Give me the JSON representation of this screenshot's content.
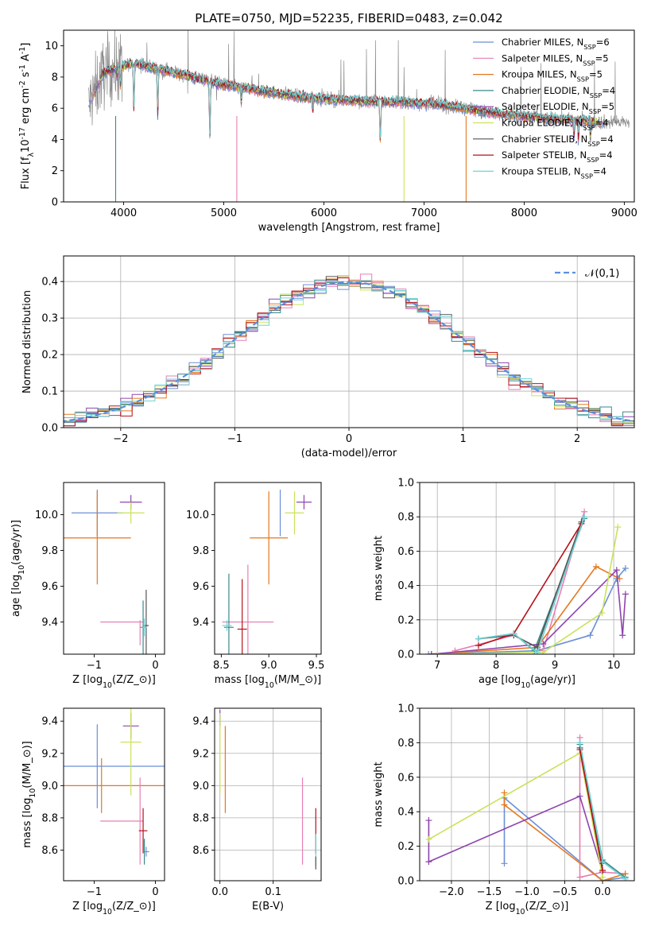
{
  "colors": {
    "palette": [
      "#6b8fd6",
      "#e77fb3",
      "#e5781f",
      "#3a8a8a",
      "#8e44ad",
      "#c9e35a",
      "#555555",
      "#b5121b",
      "#6fd3d6",
      "#8a8a8a"
    ],
    "normal_curve": "#5b8fde"
  },
  "chart_data": [
    {
      "id": "spectrum",
      "type": "line",
      "title": "PLATE=0750, MJD=52235, FIBERID=0483, z=0.042",
      "xlabel": "wavelength [Angstrom, rest frame]",
      "ylabel": "Flux [f$_{\\lambda}$10$^{-17}$ erg cm$^{-2}$ s$^{-1}$ A$^{-1}$]",
      "xlim": [
        3400,
        9100
      ],
      "ylim": [
        0,
        11
      ],
      "xticks": [
        4000,
        5000,
        6000,
        7000,
        8000,
        9000
      ],
      "yticks": [
        0,
        2,
        4,
        6,
        8,
        10
      ],
      "grid": false,
      "legend_position": "top-right",
      "series": [
        {
          "name": "Chabrier MILES, N$_{SSP}$=6"
        },
        {
          "name": "Salpeter MILES, N$_{SSP}$=5"
        },
        {
          "name": "Kroupa MILES, N$_{SSP}$=5"
        },
        {
          "name": "Chabrier ELODIE, N$_{SSP}$=4"
        },
        {
          "name": "Salpeter ELODIE, N$_{SSP}$=5"
        },
        {
          "name": "Kroupa ELODIE, N$_{SSP}$=4"
        },
        {
          "name": "Chabrier STELIB, N$_{SSP}$=4"
        },
        {
          "name": "Salpeter STELIB, N$_{SSP}$=4"
        },
        {
          "name": "Kroupa STELIB, N$_{SSP}$=4"
        }
      ],
      "data_spectrum": {
        "x_range": [
          3650,
          9050
        ]
      },
      "model_continuum": {
        "x": [
          3650,
          3800,
          3950,
          4100,
          4300,
          4500,
          4800,
          5000,
          5200,
          5500,
          5800,
          6000,
          6300,
          6600,
          6800,
          7000,
          7200,
          7400,
          7600,
          7800,
          8000,
          8300,
          8600,
          8800
        ],
        "y": [
          6.2,
          8.3,
          8.6,
          8.9,
          8.6,
          8.3,
          7.8,
          7.5,
          7.3,
          7.0,
          6.7,
          6.6,
          6.5,
          6.4,
          6.4,
          6.3,
          6.2,
          6.0,
          5.8,
          5.6,
          5.5,
          5.3,
          5.2,
          5.1
        ]
      }
    },
    {
      "id": "residuals",
      "type": "histogram",
      "xlabel": "(data-model)/error",
      "ylabel": "Normed distribution",
      "xlim": [
        -2.5,
        2.5
      ],
      "ylim": [
        0,
        0.47
      ],
      "xticks": [
        -2,
        -1,
        0,
        1,
        2
      ],
      "yticks": [
        0.0,
        0.1,
        0.2,
        0.3,
        0.4
      ],
      "grid": true,
      "legend_position": "top-right",
      "legend": "$\\mathcal{N}(0,1)$",
      "bin_width": 0.1,
      "normal_pdf": {
        "mean": 0,
        "sigma": 1
      }
    },
    {
      "id": "age_vs_Z",
      "type": "errorbar",
      "xlabel": "Z [log$_{10}$(Z/Z$_\\odot$)]",
      "ylabel": "age  [log$_{10}$(age/yr)]",
      "xlim": [
        -1.5,
        0.15
      ],
      "ylim": [
        9.22,
        10.18
      ],
      "xticks": [
        -1,
        0
      ],
      "yticks": [
        9.4,
        9.6,
        9.8,
        10.0
      ],
      "points": [
        {
          "x": -0.95,
          "y": 10.01,
          "xerr": 0.42,
          "yerr": 0.13,
          "c": 0
        },
        {
          "x": -0.95,
          "y": 9.87,
          "xerr": 0.55,
          "yerr": 0.26,
          "c": 2
        },
        {
          "x": -0.55,
          "y": 9.4,
          "xerr": 0.35,
          "yerr": 0.0,
          "c": 1
        },
        {
          "x": -0.4,
          "y": 10.07,
          "xerr": 0.18,
          "yerr": 0.04,
          "c": 4
        },
        {
          "x": -0.4,
          "y": 10.01,
          "xerr": 0.22,
          "yerr": 0.06,
          "c": 5
        },
        {
          "x": -0.2,
          "y": 9.37,
          "xerr": 0.05,
          "yerr": 0.15,
          "c": 3
        },
        {
          "x": -0.15,
          "y": 9.38,
          "xerr": 0.04,
          "yerr": 0.2,
          "c": 6
        },
        {
          "x": -0.25,
          "y": 9.34,
          "xerr": 0.0,
          "yerr": 0.07,
          "c": 1
        },
        {
          "x": -0.18,
          "y": 9.37,
          "xerr": 0.04,
          "yerr": 0.05,
          "c": 8
        }
      ]
    },
    {
      "id": "age_vs_mass",
      "type": "errorbar",
      "xlabel": "mass [log$_{10}$(M/M$_\\odot$)]",
      "ylabel": "",
      "xlim": [
        8.43,
        9.55
      ],
      "ylim": [
        9.22,
        10.18
      ],
      "xticks": [
        8.5,
        9.0,
        9.5
      ],
      "yticks": [
        9.4,
        9.6,
        9.8,
        10.0
      ],
      "points": [
        {
          "x": 9.12,
          "y": 10.01,
          "xerr": 0.0,
          "yerr": 0.13,
          "c": 0
        },
        {
          "x": 9.0,
          "y": 9.87,
          "xerr": 0.2,
          "yerr": 0.26,
          "c": 2
        },
        {
          "x": 8.78,
          "y": 9.4,
          "xerr": 0.27,
          "yerr": 0.32,
          "c": 1
        },
        {
          "x": 9.37,
          "y": 10.07,
          "xerr": 0.08,
          "yerr": 0.04,
          "c": 4
        },
        {
          "x": 9.27,
          "y": 10.01,
          "xerr": 0.1,
          "yerr": 0.12,
          "c": 5
        },
        {
          "x": 8.58,
          "y": 9.37,
          "xerr": 0.05,
          "yerr": 0.3,
          "c": 3
        },
        {
          "x": 8.72,
          "y": 9.36,
          "xerr": 0.05,
          "yerr": 0.28,
          "c": 7
        },
        {
          "x": 8.56,
          "y": 9.38,
          "xerr": 0.05,
          "yerr": 0.03,
          "c": 8
        }
      ]
    },
    {
      "id": "weight_vs_age",
      "type": "line",
      "xlabel": "age  [log$_{10}$(age/yr)]",
      "ylabel": "mass weight",
      "xlim": [
        6.7,
        10.35
      ],
      "ylim": [
        0,
        1.0
      ],
      "xticks": [
        7,
        8,
        9,
        10
      ],
      "yticks": [
        0.0,
        0.2,
        0.4,
        0.6,
        0.8,
        1.0
      ],
      "grid": true,
      "series": [
        {
          "c": 0,
          "x": [
            6.85,
            8.7,
            9.6,
            10.05,
            10.2
          ],
          "y": [
            0.0,
            0.02,
            0.11,
            0.44,
            0.5
          ]
        },
        {
          "c": 1,
          "x": [
            7.3,
            8.3,
            8.8,
            9.5
          ],
          "y": [
            0.02,
            0.11,
            0.02,
            0.83
          ]
        },
        {
          "c": 2,
          "x": [
            6.9,
            8.7,
            9.7,
            10.1
          ],
          "y": [
            0.0,
            0.04,
            0.51,
            0.44
          ]
        },
        {
          "c": 3,
          "x": [
            7.7,
            8.3,
            8.65,
            9.5
          ],
          "y": [
            0.09,
            0.12,
            0.02,
            0.79
          ]
        },
        {
          "c": 4,
          "x": [
            6.9,
            8.8,
            10.05,
            10.15,
            10.2
          ],
          "y": [
            0.0,
            0.06,
            0.49,
            0.11,
            0.35
          ]
        },
        {
          "c": 5,
          "x": [
            7.0,
            8.8,
            9.8,
            10.07
          ],
          "y": [
            0.0,
            0.01,
            0.24,
            0.74
          ]
        },
        {
          "c": 6,
          "x": [
            7.7,
            8.3,
            8.7,
            9.45
          ],
          "y": [
            0.09,
            0.11,
            0.04,
            0.77
          ]
        },
        {
          "c": 7,
          "x": [
            7.7,
            8.3,
            9.45
          ],
          "y": [
            0.05,
            0.12,
            0.76
          ]
        },
        {
          "c": 8,
          "x": [
            7.7,
            8.3,
            8.7,
            9.5
          ],
          "y": [
            0.09,
            0.12,
            0.01,
            0.8
          ]
        }
      ]
    },
    {
      "id": "mass_vs_Z",
      "type": "errorbar",
      "xlabel": "Z [log$_{10}$(Z/Z$_\\odot$)]",
      "ylabel": "mass [log$_{10}$(M/M$_\\odot$)]",
      "xlim": [
        -1.5,
        0.15
      ],
      "ylim": [
        8.41,
        9.48
      ],
      "xticks": [
        -1,
        0
      ],
      "yticks": [
        8.6,
        8.8,
        9.0,
        9.2,
        9.4
      ],
      "points": [
        {
          "x": -0.95,
          "y": 9.12,
          "xerr": 0.0,
          "yerr": 0.26,
          "c": 0
        },
        {
          "x": -0.95,
          "y": 9.12,
          "xerr": 1.1,
          "yerr": 0.0,
          "c": 0
        },
        {
          "x": -0.95,
          "y": 9.0,
          "xerr": 1.1,
          "yerr": 0.0,
          "c": 2
        },
        {
          "x": -0.88,
          "y": 9.0,
          "xerr": 0.0,
          "yerr": 0.17,
          "c": 2
        },
        {
          "x": -0.55,
          "y": 8.78,
          "xerr": 0.35,
          "yerr": 0.0,
          "c": 1
        },
        {
          "x": -0.25,
          "y": 8.78,
          "xerr": 0.0,
          "yerr": 0.27,
          "c": 1
        },
        {
          "x": -0.4,
          "y": 9.37,
          "xerr": 0.13,
          "yerr": 0.08,
          "c": 4
        },
        {
          "x": -0.4,
          "y": 9.27,
          "xerr": 0.17,
          "yerr": 0.33,
          "c": 5
        },
        {
          "x": -0.2,
          "y": 8.72,
          "xerr": 0.07,
          "yerr": 0.14,
          "c": 7
        },
        {
          "x": -0.15,
          "y": 8.59,
          "xerr": 0.05,
          "yerr": 0.03,
          "c": 0
        },
        {
          "x": -0.18,
          "y": 8.59,
          "xerr": 0.0,
          "yerr": 0.08,
          "c": 3
        }
      ]
    },
    {
      "id": "mass_vs_ebv",
      "type": "errorbar",
      "xlabel": "E(B-V)",
      "ylabel": "",
      "xlim": [
        -0.01,
        0.19
      ],
      "ylim": [
        8.41,
        9.48
      ],
      "xticks": [
        0.0,
        0.1
      ],
      "yticks": [
        8.6,
        8.8,
        9.0,
        9.2,
        9.4
      ],
      "grid": true,
      "points": [
        {
          "x": 0.0,
          "y": 9.42,
          "xerr": 0.0,
          "yerr": 0.05,
          "c": 4
        },
        {
          "x": 0.0,
          "y": 9.2,
          "xerr": 0.0,
          "yerr": 0.25,
          "c": 5
        },
        {
          "x": 0.01,
          "y": 9.1,
          "xerr": 0.0,
          "yerr": 0.27,
          "c": 2
        },
        {
          "x": 0.155,
          "y": 8.78,
          "xerr": 0.0,
          "yerr": 0.27,
          "c": 1
        },
        {
          "x": 0.18,
          "y": 8.72,
          "xerr": 0.0,
          "yerr": 0.14,
          "c": 7
        },
        {
          "x": 0.18,
          "y": 8.6,
          "xerr": 0.0,
          "yerr": 0.1,
          "c": 8
        },
        {
          "x": 0.18,
          "y": 8.52,
          "xerr": 0.0,
          "yerr": 0.04,
          "c": 6
        }
      ]
    },
    {
      "id": "weight_vs_Z",
      "type": "line",
      "xlabel": "Z [log$_{10}$(Z/Z$_\\odot$)]",
      "ylabel": "mass weight",
      "xlim": [
        -2.42,
        0.42
      ],
      "ylim": [
        0,
        1.0
      ],
      "xticks": [
        -2.0,
        -1.5,
        -1.0,
        -0.5,
        0.0
      ],
      "yticks": [
        0.0,
        0.2,
        0.4,
        0.6,
        0.8,
        1.0
      ],
      "grid": true,
      "series": [
        {
          "c": 0,
          "x": [
            -1.3,
            -1.3,
            0.0,
            0.3
          ],
          "y": [
            0.1,
            0.48,
            0.0,
            0.02
          ]
        },
        {
          "c": 1,
          "x": [
            -0.3,
            -0.3,
            0.0,
            0.3
          ],
          "y": [
            0.83,
            0.02,
            0.05,
            0.04
          ]
        },
        {
          "c": 2,
          "x": [
            -1.3,
            -1.3,
            0.0,
            0.3
          ],
          "y": [
            0.51,
            0.44,
            0.0,
            0.04
          ]
        },
        {
          "c": 3,
          "x": [
            -0.3,
            0.0,
            0.3
          ],
          "y": [
            0.79,
            0.12,
            0.02
          ]
        },
        {
          "c": 4,
          "x": [
            -2.3,
            -2.3,
            -0.3,
            0.0
          ],
          "y": [
            0.35,
            0.11,
            0.49,
            0.05
          ]
        },
        {
          "c": 5,
          "x": [
            -2.3,
            -0.3,
            0.0
          ],
          "y": [
            0.24,
            0.74,
            0.02
          ]
        },
        {
          "c": 6,
          "x": [
            -0.3,
            0.0
          ],
          "y": [
            0.77,
            0.1
          ]
        },
        {
          "c": 7,
          "x": [
            -0.3,
            0.0
          ],
          "y": [
            0.76,
            0.06
          ]
        },
        {
          "c": 8,
          "x": [
            -0.3,
            0.0,
            0.3
          ],
          "y": [
            0.8,
            0.11,
            0.01
          ]
        }
      ]
    }
  ]
}
